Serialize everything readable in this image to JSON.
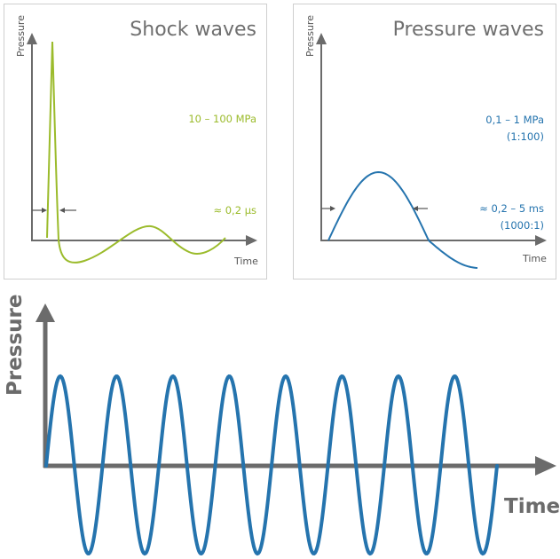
{
  "colors": {
    "shock": "#9bbb2b",
    "pressure": "#2574ae",
    "axis": "#6b6b6b",
    "panel_border": "#cfcfcf"
  },
  "shock_panel": {
    "title": "Shock waves",
    "ylabel": "Pressure",
    "xlabel": "Time",
    "amplitude_label": "10 – 100 MPa",
    "duration_label": "≈ 0,2 µs"
  },
  "pressure_panel": {
    "title": "Pressure waves",
    "ylabel": "Pressure",
    "xlabel": "Time",
    "amplitude_label": "0,1 – 1 MPa",
    "amplitude_ratio": "(1:100)",
    "duration_label": "≈ 0,2 – 5 ms",
    "duration_ratio": "(1000:1)"
  },
  "wave_train": {
    "ylabel": "Pressure",
    "xlabel": "Time",
    "cycles": 8
  }
}
